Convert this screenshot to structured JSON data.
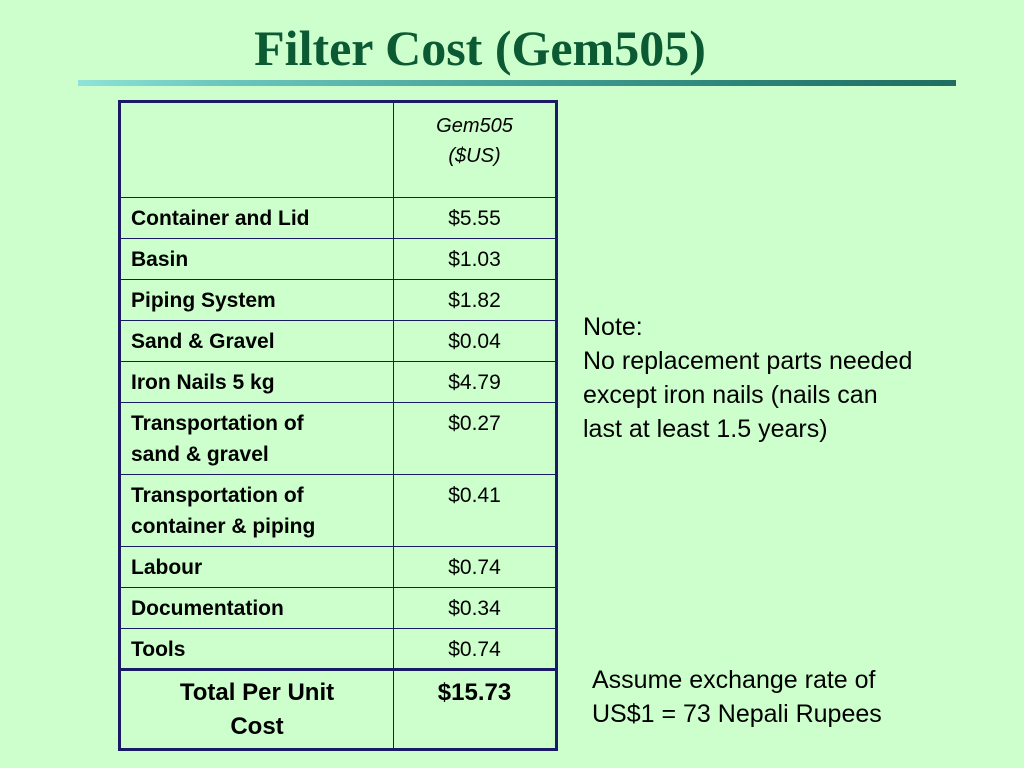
{
  "slide": {
    "title": "Filter Cost (Gem505)"
  },
  "table": {
    "header": {
      "item": "",
      "value_line1": "Gem505",
      "value_line2": "($US)"
    },
    "rows": [
      {
        "item": "Container and Lid",
        "value": "$5.55"
      },
      {
        "item": "Basin",
        "value": "$1.03"
      },
      {
        "item": "Piping System",
        "value": "$1.82"
      },
      {
        "item": "Sand & Gravel",
        "value": "$0.04"
      },
      {
        "item": "Iron Nails 5 kg",
        "value": "$4.79"
      },
      {
        "item_line1": "Transportation of",
        "item_line2": "sand & gravel",
        "value": "$0.27"
      },
      {
        "item_line1": "Transportation of",
        "item_line2": "container & piping",
        "value": "$0.41"
      },
      {
        "item": "Labour",
        "value": "$0.74"
      },
      {
        "item": "Documentation",
        "value": "$0.34"
      },
      {
        "item": "Tools",
        "value": "$0.74"
      }
    ],
    "total": {
      "item_line1": "Total Per Unit",
      "item_line2": "Cost",
      "value": "$15.73"
    }
  },
  "note": {
    "heading": "Note:",
    "line1": "No replacement parts needed",
    "line2": "except iron nails (nails can",
    "line3": "last at least 1.5 years)"
  },
  "exchange": {
    "line1": "Assume exchange rate of",
    "line2": "US$1 = 73 Nepali Rupees"
  }
}
